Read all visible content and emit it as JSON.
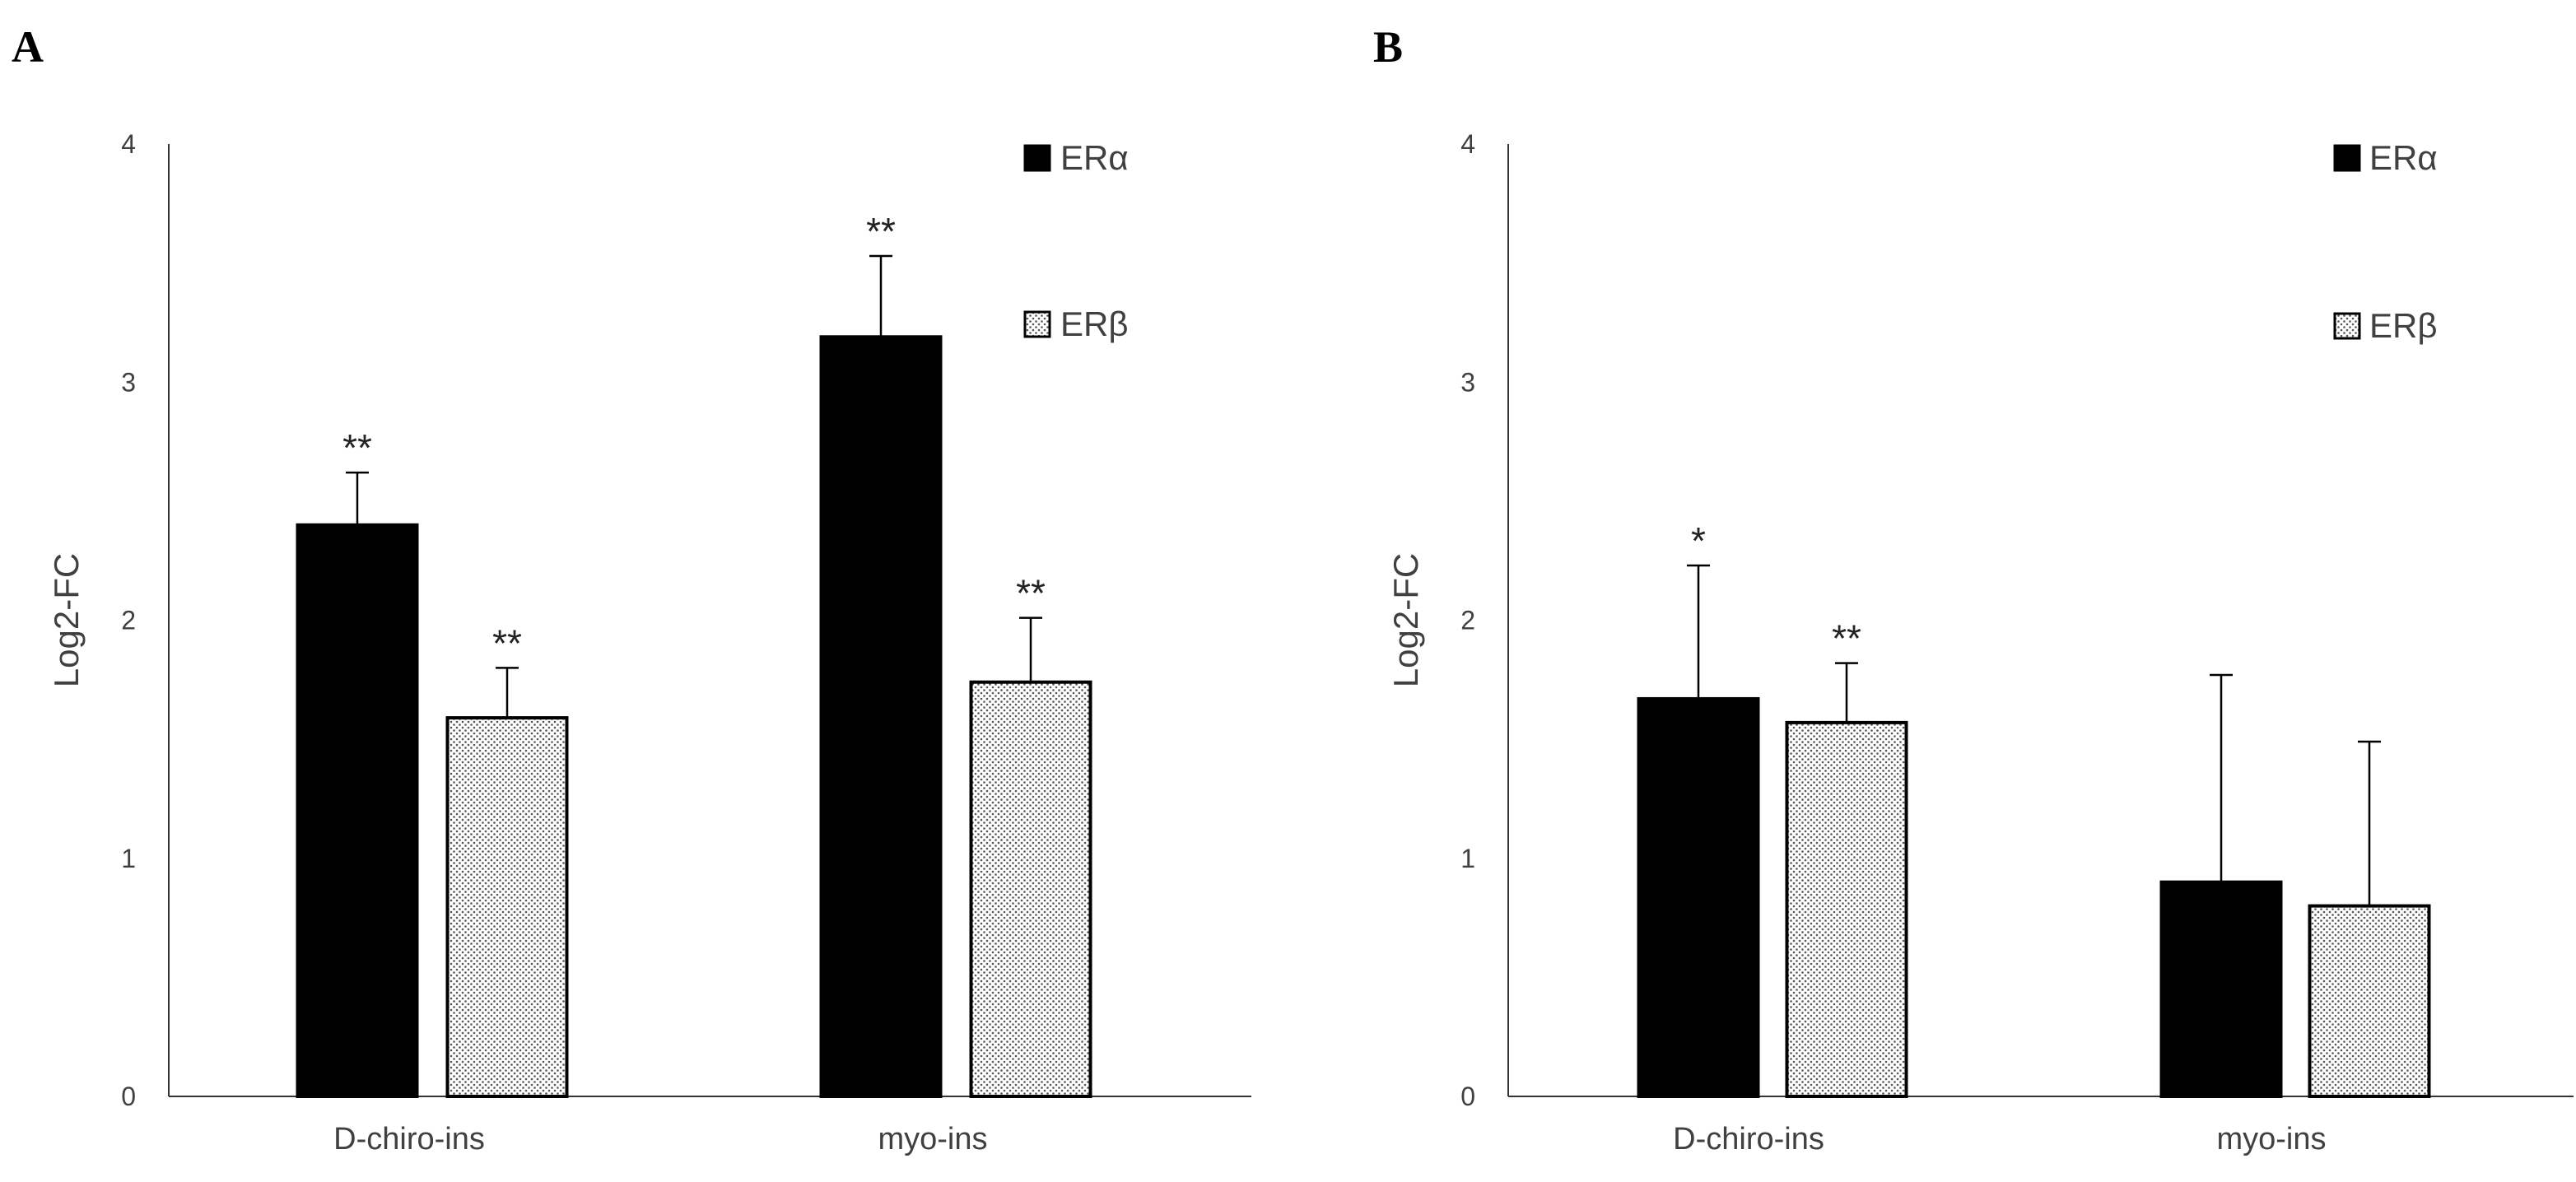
{
  "chart_data": [
    {
      "panel": "A",
      "type": "bar",
      "categories": [
        "D-chiro-ins",
        "myo-ins"
      ],
      "ylabel": "Log2-FC",
      "ylim": [
        0,
        4
      ],
      "yticks": [
        "0",
        "1",
        "2",
        "3",
        "4"
      ],
      "series": [
        {
          "name": "ERα",
          "pattern": "solid",
          "values": [
            2.4,
            3.19
          ],
          "errors": [
            0.22,
            0.34
          ],
          "significance": [
            "**",
            "**"
          ]
        },
        {
          "name": "ERβ",
          "pattern": "dotted",
          "values": [
            1.59,
            1.74
          ],
          "errors": [
            0.21,
            0.27
          ],
          "significance": [
            "**",
            "**"
          ]
        }
      ],
      "legend": "top-right"
    },
    {
      "panel": "B",
      "type": "bar",
      "categories": [
        "D-chiro-ins",
        "myo-ins"
      ],
      "ylabel": "Log2-FC",
      "ylim": [
        0,
        4
      ],
      "yticks": [
        "0",
        "1",
        "2",
        "3",
        "4"
      ],
      "series": [
        {
          "name": "ERα",
          "pattern": "solid",
          "values": [
            1.67,
            0.9
          ],
          "errors": [
            0.56,
            0.87
          ],
          "significance": [
            "*",
            ""
          ]
        },
        {
          "name": "ERβ",
          "pattern": "dotted",
          "values": [
            1.57,
            0.8
          ],
          "errors": [
            0.25,
            0.69
          ],
          "significance": [
            "**",
            ""
          ]
        }
      ],
      "legend": "top-right"
    }
  ],
  "colors": {
    "bar": "#000000",
    "axis": "#333333",
    "text": "#404040",
    "dots": "#555555"
  }
}
